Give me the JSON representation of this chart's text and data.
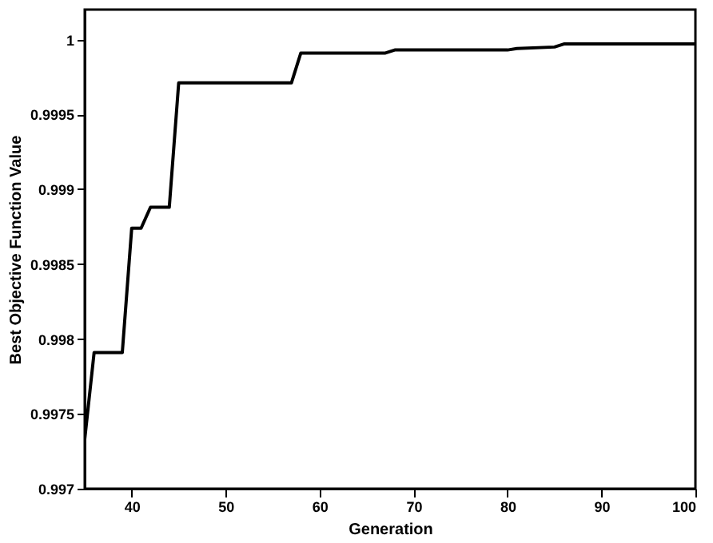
{
  "chart_data": {
    "type": "line",
    "xlabel": "Generation",
    "ylabel": "Best Objective Function Value",
    "x": [
      35,
      36,
      39,
      40,
      41,
      42,
      44,
      45,
      57,
      58,
      67,
      68,
      80,
      81,
      85,
      86,
      100
    ],
    "series": [
      {
        "color": "#000000",
        "values": [
          0.99733,
          0.99791,
          0.99791,
          0.99874,
          0.99874,
          0.99888,
          0.99888,
          0.99971,
          0.99971,
          0.99991,
          0.99991,
          0.99993,
          0.99993,
          0.99994,
          0.99995,
          0.99997,
          0.99997
        ]
      }
    ],
    "xlim": [
      35,
      100
    ],
    "xticks": [
      40,
      50,
      60,
      70,
      80,
      90,
      100
    ],
    "ylim": [
      0.997,
      1.0002
    ],
    "yticks": [
      0.997,
      0.9975,
      0.998,
      0.9985,
      0.999,
      0.9995,
      1
    ],
    "grid": false,
    "marker": "none",
    "line_style": "solid"
  }
}
